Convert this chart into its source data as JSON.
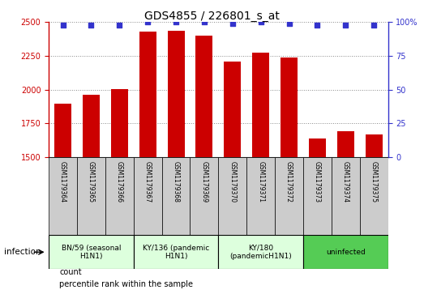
{
  "title": "GDS4855 / 226801_s_at",
  "samples": [
    "GSM1179364",
    "GSM1179365",
    "GSM1179366",
    "GSM1179367",
    "GSM1179368",
    "GSM1179369",
    "GSM1179370",
    "GSM1179371",
    "GSM1179372",
    "GSM1179373",
    "GSM1179374",
    "GSM1179375"
  ],
  "counts": [
    1895,
    1960,
    2005,
    2430,
    2435,
    2400,
    2210,
    2275,
    2240,
    1640,
    1695,
    1670
  ],
  "percentile_ranks": [
    98,
    98,
    98,
    100,
    100,
    100,
    99,
    100,
    99,
    98,
    98,
    98
  ],
  "ylim_left": [
    1500,
    2500
  ],
  "ylim_right": [
    0,
    100
  ],
  "yticks_left": [
    1500,
    1750,
    2000,
    2250,
    2500
  ],
  "yticks_right": [
    0,
    25,
    50,
    75,
    100
  ],
  "bar_color": "#cc0000",
  "dot_color": "#3333cc",
  "groups": [
    {
      "label": "BN/59 (seasonal\nH1N1)",
      "start": 0,
      "end": 3,
      "color": "#ddffdd"
    },
    {
      "label": "KY/136 (pandemic\nH1N1)",
      "start": 3,
      "end": 6,
      "color": "#ddffdd"
    },
    {
      "label": "KY/180\n(pandemicH1N1)",
      "start": 6,
      "end": 9,
      "color": "#ddffdd"
    },
    {
      "label": "uninfected",
      "start": 9,
      "end": 12,
      "color": "#55cc55"
    }
  ],
  "infection_label": "infection",
  "legend_count_label": "count",
  "legend_pct_label": "percentile rank within the sample",
  "title_fontsize": 10,
  "tick_fontsize": 7,
  "grid_color": "#888888",
  "left_axis_color": "#cc0000",
  "right_axis_color": "#3333cc",
  "sample_cell_color": "#cccccc",
  "sample_cell_edge": "#000000"
}
